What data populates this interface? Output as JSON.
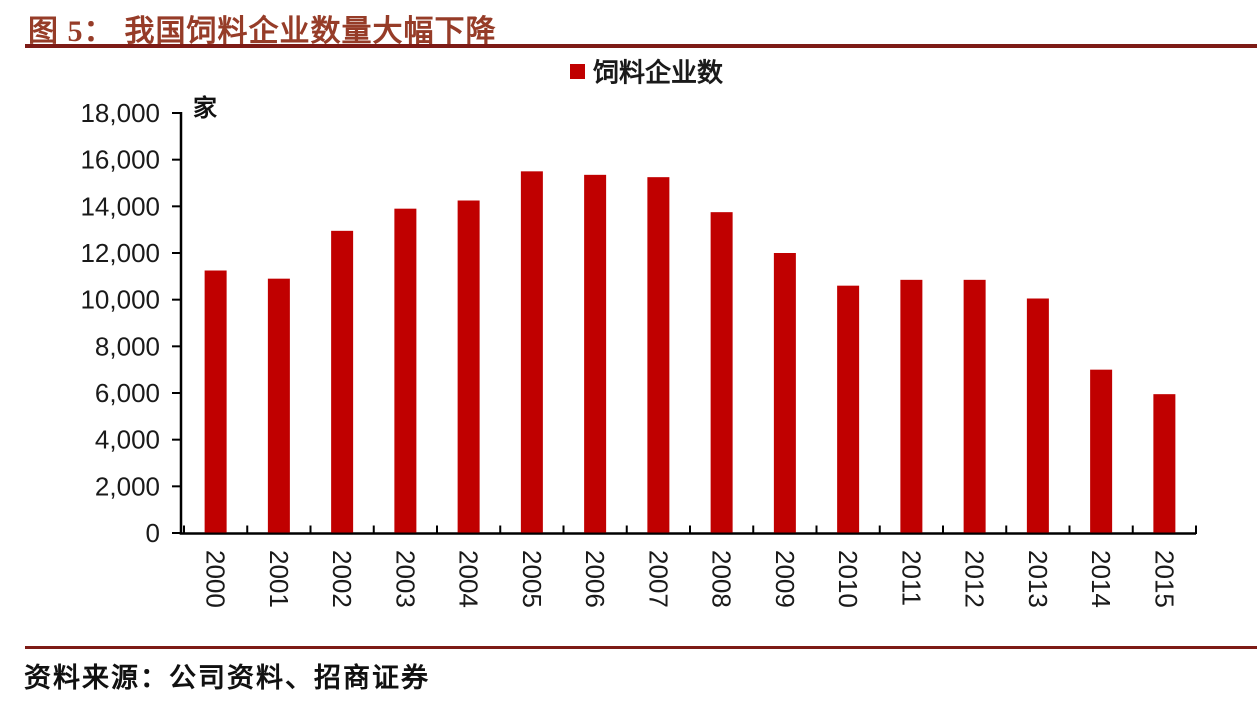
{
  "figure": {
    "label": "图 5：",
    "title": "我国饲料企业数量大幅下降",
    "title_color": "#963C28",
    "rule_color": "#7D1B16"
  },
  "chart_data": {
    "type": "bar",
    "title": "",
    "legend": {
      "position": "top",
      "entries": [
        {
          "label": "饲料企业数",
          "color": "#C00000"
        }
      ]
    },
    "unit_label": "家",
    "categories": [
      "2000",
      "2001",
      "2002",
      "2003",
      "2004",
      "2005",
      "2006",
      "2007",
      "2008",
      "2009",
      "2010",
      "2011",
      "2012",
      "2013",
      "2014",
      "2015"
    ],
    "series": [
      {
        "name": "饲料企业数",
        "values": [
          11250,
          10900,
          12950,
          13900,
          14250,
          15500,
          15350,
          15250,
          13750,
          12000,
          10600,
          10850,
          10850,
          10050,
          7000,
          5950
        ]
      }
    ],
    "xlabel": "",
    "ylabel": "家",
    "ylim": [
      0,
      18000
    ],
    "ytick_step": 2000,
    "ytick_labels": [
      "0",
      "2,000",
      "4,000",
      "6,000",
      "8,000",
      "10,000",
      "12,000",
      "14,000",
      "16,000",
      "18,000"
    ],
    "x_label_rotation_deg": 90,
    "grid": false,
    "bar_color": "#C00000",
    "axis_color": "#000000",
    "tick_label_color": "#1A1A1A"
  },
  "source": {
    "text": "资料来源：公司资料、招商证券"
  }
}
